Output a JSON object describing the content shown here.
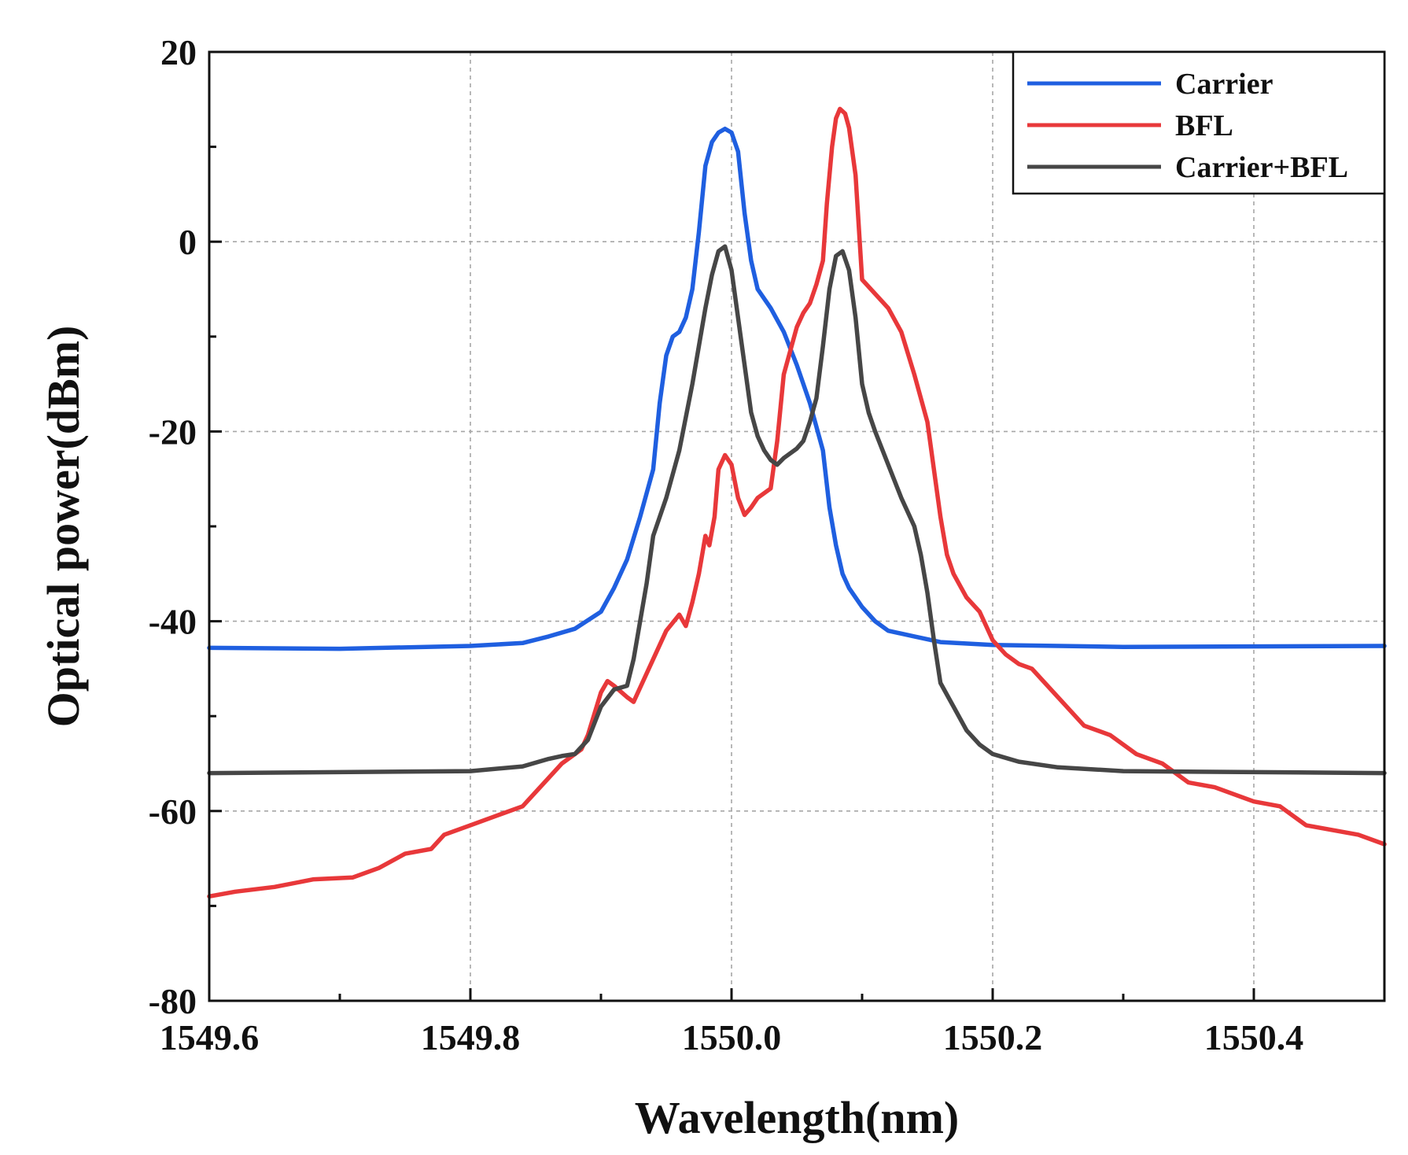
{
  "chart_data": {
    "type": "line",
    "title": "",
    "xlabel": "Wavelength(nm)",
    "ylabel": "Optical power(dBm)",
    "xlim": [
      1549.6,
      1550.5
    ],
    "ylim": [
      -80,
      20
    ],
    "x_ticks": [
      1549.6,
      1549.8,
      1550.0,
      1550.2,
      1550.4
    ],
    "x_tick_labels": [
      "1549.6",
      "1549.8",
      "1550.0",
      "1550.2",
      "1550.4"
    ],
    "x_minor_ticks": [
      1549.7,
      1549.9,
      1550.1,
      1550.3
    ],
    "y_ticks": [
      20,
      0,
      -20,
      -40,
      -60,
      -80
    ],
    "y_tick_labels": [
      "20",
      "0",
      "-20",
      "-40",
      "-60",
      "-80"
    ],
    "y_minor_ticks": [
      10,
      -10,
      -30,
      -50,
      -70
    ],
    "grid": true,
    "legend_position": "top-right",
    "series": [
      {
        "name": "Carrier",
        "color": "#1f5fe0",
        "points": [
          [
            1549.6,
            -42.8
          ],
          [
            1549.7,
            -42.9
          ],
          [
            1549.8,
            -42.6
          ],
          [
            1549.84,
            -42.3
          ],
          [
            1549.86,
            -41.6
          ],
          [
            1549.88,
            -40.8
          ],
          [
            1549.9,
            -39.0
          ],
          [
            1549.91,
            -36.5
          ],
          [
            1549.92,
            -33.5
          ],
          [
            1549.93,
            -29.0
          ],
          [
            1549.94,
            -24.0
          ],
          [
            1549.945,
            -17.0
          ],
          [
            1549.95,
            -12.0
          ],
          [
            1549.955,
            -10.0
          ],
          [
            1549.96,
            -9.5
          ],
          [
            1549.965,
            -8.0
          ],
          [
            1549.97,
            -5.0
          ],
          [
            1549.975,
            1.0
          ],
          [
            1549.98,
            8.0
          ],
          [
            1549.985,
            10.5
          ],
          [
            1549.99,
            11.5
          ],
          [
            1549.995,
            11.9
          ],
          [
            1550.0,
            11.5
          ],
          [
            1550.005,
            9.5
          ],
          [
            1550.01,
            3.0
          ],
          [
            1550.015,
            -2.0
          ],
          [
            1550.02,
            -5.0
          ],
          [
            1550.03,
            -7.0
          ],
          [
            1550.04,
            -9.5
          ],
          [
            1550.05,
            -13.0
          ],
          [
            1550.06,
            -17.0
          ],
          [
            1550.07,
            -22.0
          ],
          [
            1550.075,
            -28.0
          ],
          [
            1550.08,
            -32.0
          ],
          [
            1550.085,
            -35.0
          ],
          [
            1550.09,
            -36.5
          ],
          [
            1550.1,
            -38.5
          ],
          [
            1550.11,
            -40.0
          ],
          [
            1550.12,
            -41.0
          ],
          [
            1550.14,
            -41.6
          ],
          [
            1550.16,
            -42.2
          ],
          [
            1550.2,
            -42.5
          ],
          [
            1550.3,
            -42.7
          ],
          [
            1550.5,
            -42.6
          ]
        ]
      },
      {
        "name": "BFL",
        "color": "#e8383a",
        "points": [
          [
            1549.6,
            -69.0
          ],
          [
            1549.62,
            -68.5
          ],
          [
            1549.65,
            -68.0
          ],
          [
            1549.68,
            -67.2
          ],
          [
            1549.71,
            -67.0
          ],
          [
            1549.73,
            -66.0
          ],
          [
            1549.75,
            -64.5
          ],
          [
            1549.77,
            -64.0
          ],
          [
            1549.78,
            -62.5
          ],
          [
            1549.8,
            -61.5
          ],
          [
            1549.82,
            -60.5
          ],
          [
            1549.84,
            -59.5
          ],
          [
            1549.86,
            -56.5
          ],
          [
            1549.87,
            -55.0
          ],
          [
            1549.885,
            -53.5
          ],
          [
            1549.89,
            -52.0
          ],
          [
            1549.9,
            -47.5
          ],
          [
            1549.905,
            -46.3
          ],
          [
            1549.91,
            -46.8
          ],
          [
            1549.92,
            -48.0
          ],
          [
            1549.925,
            -48.5
          ],
          [
            1549.93,
            -47.0
          ],
          [
            1549.94,
            -44.0
          ],
          [
            1549.95,
            -41.0
          ],
          [
            1549.96,
            -39.3
          ],
          [
            1549.965,
            -40.5
          ],
          [
            1549.97,
            -38.0
          ],
          [
            1549.975,
            -35.0
          ],
          [
            1549.98,
            -31.0
          ],
          [
            1549.983,
            -32.0
          ],
          [
            1549.987,
            -29.0
          ],
          [
            1549.99,
            -24.0
          ],
          [
            1549.995,
            -22.5
          ],
          [
            1550.0,
            -23.5
          ],
          [
            1550.005,
            -27.0
          ],
          [
            1550.01,
            -28.8
          ],
          [
            1550.015,
            -28.0
          ],
          [
            1550.02,
            -27.0
          ],
          [
            1550.03,
            -26.0
          ],
          [
            1550.035,
            -21.0
          ],
          [
            1550.04,
            -14.0
          ],
          [
            1550.05,
            -9.0
          ],
          [
            1550.055,
            -7.5
          ],
          [
            1550.06,
            -6.5
          ],
          [
            1550.065,
            -4.5
          ],
          [
            1550.07,
            -2.0
          ],
          [
            1550.073,
            4.0
          ],
          [
            1550.077,
            10.0
          ],
          [
            1550.08,
            13.0
          ],
          [
            1550.083,
            14.0
          ],
          [
            1550.087,
            13.5
          ],
          [
            1550.09,
            12.0
          ],
          [
            1550.095,
            7.0
          ],
          [
            1550.1,
            -4.0
          ],
          [
            1550.11,
            -5.5
          ],
          [
            1550.12,
            -7.0
          ],
          [
            1550.13,
            -9.5
          ],
          [
            1550.14,
            -14.0
          ],
          [
            1550.15,
            -19.0
          ],
          [
            1550.155,
            -24.0
          ],
          [
            1550.16,
            -29.0
          ],
          [
            1550.165,
            -33.0
          ],
          [
            1550.17,
            -35.0
          ],
          [
            1550.18,
            -37.5
          ],
          [
            1550.19,
            -39.0
          ],
          [
            1550.2,
            -42.0
          ],
          [
            1550.21,
            -43.5
          ],
          [
            1550.22,
            -44.5
          ],
          [
            1550.23,
            -45.0
          ],
          [
            1550.25,
            -48.0
          ],
          [
            1550.27,
            -51.0
          ],
          [
            1550.29,
            -52.0
          ],
          [
            1550.31,
            -54.0
          ],
          [
            1550.33,
            -55.0
          ],
          [
            1550.35,
            -57.0
          ],
          [
            1550.37,
            -57.5
          ],
          [
            1550.4,
            -59.0
          ],
          [
            1550.42,
            -59.5
          ],
          [
            1550.44,
            -61.5
          ],
          [
            1550.46,
            -62.0
          ],
          [
            1550.48,
            -62.5
          ],
          [
            1550.5,
            -63.5
          ]
        ]
      },
      {
        "name": "Carrier+BFL",
        "color": "#464646",
        "points": [
          [
            1549.6,
            -56.0
          ],
          [
            1549.8,
            -55.8
          ],
          [
            1549.84,
            -55.3
          ],
          [
            1549.86,
            -54.5
          ],
          [
            1549.87,
            -54.2
          ],
          [
            1549.88,
            -54.0
          ],
          [
            1549.89,
            -52.5
          ],
          [
            1549.9,
            -49.0
          ],
          [
            1549.91,
            -47.2
          ],
          [
            1549.92,
            -46.8
          ],
          [
            1549.925,
            -44.0
          ],
          [
            1549.93,
            -40.0
          ],
          [
            1549.935,
            -36.0
          ],
          [
            1549.94,
            -31.0
          ],
          [
            1549.95,
            -27.0
          ],
          [
            1549.96,
            -22.0
          ],
          [
            1549.965,
            -18.5
          ],
          [
            1549.97,
            -15.0
          ],
          [
            1549.975,
            -11.0
          ],
          [
            1549.98,
            -7.0
          ],
          [
            1549.985,
            -3.5
          ],
          [
            1549.99,
            -1.0
          ],
          [
            1549.995,
            -0.5
          ],
          [
            1550.0,
            -3.0
          ],
          [
            1550.005,
            -8.0
          ],
          [
            1550.01,
            -13.0
          ],
          [
            1550.015,
            -18.0
          ],
          [
            1550.02,
            -20.5
          ],
          [
            1550.025,
            -22.0
          ],
          [
            1550.03,
            -23.0
          ],
          [
            1550.035,
            -23.5
          ],
          [
            1550.04,
            -22.8
          ],
          [
            1550.05,
            -21.8
          ],
          [
            1550.055,
            -21.0
          ],
          [
            1550.06,
            -19.0
          ],
          [
            1550.065,
            -16.5
          ],
          [
            1550.07,
            -11.0
          ],
          [
            1550.075,
            -5.0
          ],
          [
            1550.08,
            -1.5
          ],
          [
            1550.085,
            -1.0
          ],
          [
            1550.09,
            -3.0
          ],
          [
            1550.095,
            -8.0
          ],
          [
            1550.1,
            -15.0
          ],
          [
            1550.105,
            -18.0
          ],
          [
            1550.11,
            -20.0
          ],
          [
            1550.12,
            -23.5
          ],
          [
            1550.13,
            -27.0
          ],
          [
            1550.14,
            -30.0
          ],
          [
            1550.145,
            -33.0
          ],
          [
            1550.15,
            -37.0
          ],
          [
            1550.155,
            -42.0
          ],
          [
            1550.16,
            -46.5
          ],
          [
            1550.17,
            -49.0
          ],
          [
            1550.18,
            -51.5
          ],
          [
            1550.19,
            -53.0
          ],
          [
            1550.2,
            -54.0
          ],
          [
            1550.22,
            -54.8
          ],
          [
            1550.25,
            -55.4
          ],
          [
            1550.3,
            -55.8
          ],
          [
            1550.5,
            -56.0
          ]
        ]
      }
    ]
  }
}
